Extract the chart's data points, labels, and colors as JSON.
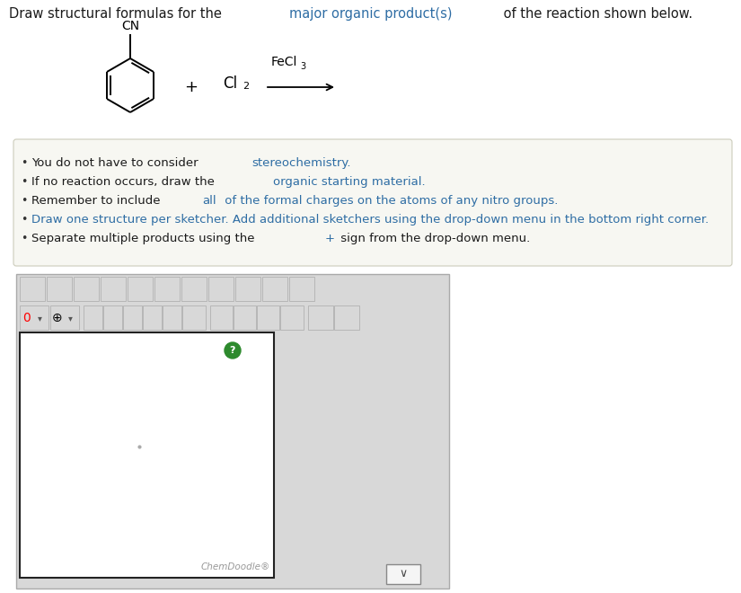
{
  "bg_color": "#ffffff",
  "title_parts": [
    [
      "Draw structural formulas for the ",
      "#1a1a1a"
    ],
    [
      "major organic product(s)",
      "#2e6da4"
    ],
    [
      " of the reaction shown below.",
      "#1a1a1a"
    ]
  ],
  "cn_text": "CN",
  "cl2_text": "Cl",
  "fecl3_text": "FeCl",
  "bullet_lines": [
    [
      [
        "You do not have to consider ",
        "#1a1a1a"
      ],
      [
        "stereochemistry.",
        "#2e6da4"
      ]
    ],
    [
      [
        "If no reaction occurs, draw the ",
        "#1a1a1a"
      ],
      [
        "organic starting material.",
        "#2e6da4"
      ]
    ],
    [
      [
        "Remember to include ",
        "#1a1a1a"
      ],
      [
        "all",
        "#2e6da4"
      ],
      [
        " of the formal charges on the atoms of any nitro groups.",
        "#2e6da4"
      ]
    ],
    [
      [
        "Draw one structure per sketcher. Add additional sketchers using the drop-down menu in the bottom right corner.",
        "#2e6da4"
      ]
    ],
    [
      [
        "Separate multiple products using the ",
        "#1a1a1a"
      ],
      [
        "+",
        "#2e6da4"
      ],
      [
        " sign from the drop-down menu.",
        "#1a1a1a"
      ]
    ]
  ],
  "bullet_box_bg": "#f7f7f2",
  "bullet_box_border": "#ccccbb",
  "chemdoodle_label": "ChemDoodle®",
  "toolbar_outer_bg": "#d0d0d0",
  "toolbar_inner_bg": "#e0e0e0",
  "sketcher_bg": "#ffffff",
  "sketcher_border": "#222222",
  "dropdown_bg": "#f5f5f5",
  "green_question_color": "#2d8a2d",
  "dot_color": "#aaaaaa",
  "icon_bg": "#d8d8d8",
  "icon_border": "#aaaaaa"
}
